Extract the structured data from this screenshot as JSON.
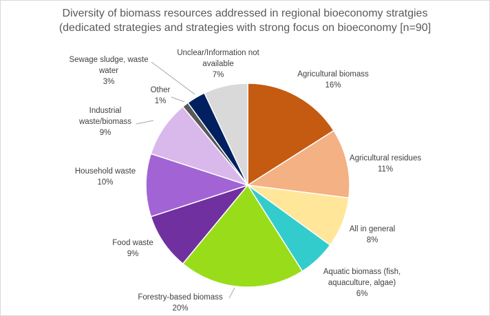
{
  "chart_data": {
    "type": "pie",
    "title_lines": [
      "Diversity of biomass resources addressed in regional bioeconomy stratgies",
      "(dedicated strategies and strategies with strong focus on bioeconomy [n=90]"
    ],
    "slices": [
      {
        "label": "Agricultural biomass",
        "value": 16,
        "pct_label": "16%",
        "color": "#c55a11"
      },
      {
        "label": "Agricultural residues",
        "value": 11,
        "pct_label": "11%",
        "color": "#f4b183"
      },
      {
        "label": "All in general",
        "value": 8,
        "pct_label": "8%",
        "color": "#ffe699"
      },
      {
        "label": "Aquatic biomass (fish, aquaculture, algae)",
        "value": 6,
        "pct_label": "6%",
        "color": "#33cccc"
      },
      {
        "label": "Forestry-based biomass",
        "value": 20,
        "pct_label": "20%",
        "color": "#99dd1a"
      },
      {
        "label": "Food waste",
        "value": 9,
        "pct_label": "9%",
        "color": "#7030a0"
      },
      {
        "label": "Household waste",
        "value": 10,
        "pct_label": "10%",
        "color": "#a264d4"
      },
      {
        "label": "Industrial waste/biomass",
        "value": 9,
        "pct_label": "9%",
        "color": "#d9b8ec"
      },
      {
        "label": "Other",
        "value": 1,
        "pct_label": "1%",
        "color": "#595959"
      },
      {
        "label": "Sewage sludge, waste water",
        "value": 3,
        "pct_label": "3%",
        "color": "#002060"
      },
      {
        "label": "Unclear/Information not available",
        "value": 7,
        "pct_label": "7%",
        "color": "#d9d9d9"
      }
    ]
  }
}
